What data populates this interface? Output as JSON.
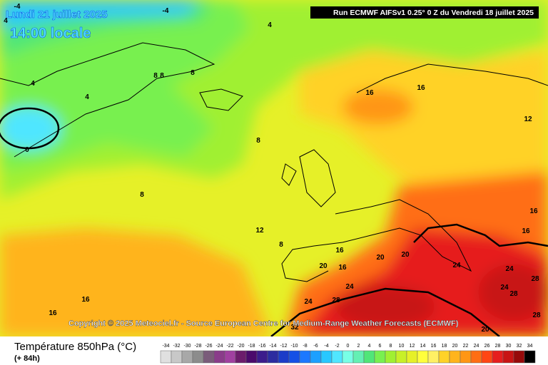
{
  "header": {
    "date": "Lundi 21 juillet 2025",
    "time": "14:00 locale",
    "run": "Run ECMWF AIFSv1 0.25° 0 Z du Vendredi 18 juillet 2025"
  },
  "copyright": "Copyright © 2025 Meteociel.fr - Source European Centre for Medium-Range Weather Forecasts (ECMWF)",
  "footer": {
    "title": "Température 850hPa (°C)",
    "lead": "(+ 84h)"
  },
  "scale": {
    "labels": [
      -34,
      -32,
      -30,
      -28,
      -26,
      -24,
      -22,
      -20,
      -18,
      -16,
      -14,
      -12,
      -10,
      -8,
      -6,
      -4,
      -2,
      0,
      2,
      4,
      6,
      8,
      10,
      12,
      14,
      16,
      18,
      20,
      22,
      24,
      26,
      28,
      30,
      32,
      34
    ],
    "colors": [
      "#e0e0e0",
      "#c8c8c8",
      "#a8a8a8",
      "#8c8c8c",
      "#7a5c7a",
      "#8a3c8a",
      "#a040a0",
      "#6c1c6c",
      "#4b0a6c",
      "#3c1c8c",
      "#2c2ca0",
      "#1c3cc8",
      "#1450e6",
      "#1c78ff",
      "#1ca0ff",
      "#28c8ff",
      "#50e6ff",
      "#78ffe6",
      "#64f0b4",
      "#50e678",
      "#78f050",
      "#a0f032",
      "#c8f028",
      "#e6f028",
      "#ffff3c",
      "#fff064",
      "#ffd228",
      "#ffb41c",
      "#ff9614",
      "#ff6e14",
      "#ff4614",
      "#e61e1e",
      "#c81414",
      "#960a0a",
      "#000000"
    ]
  },
  "contour_labels": [
    "-4",
    "-4",
    "4",
    "4",
    "8",
    "8",
    "8",
    "4",
    "4",
    "16",
    "16",
    "0",
    "8",
    "12",
    "8",
    "16",
    "12",
    "16",
    "8",
    "16",
    "20",
    "20",
    "20",
    "16",
    "24",
    "24",
    "24",
    "28",
    "24",
    "28",
    "24",
    "16",
    "28",
    "16",
    "28",
    "32",
    "20"
  ]
}
